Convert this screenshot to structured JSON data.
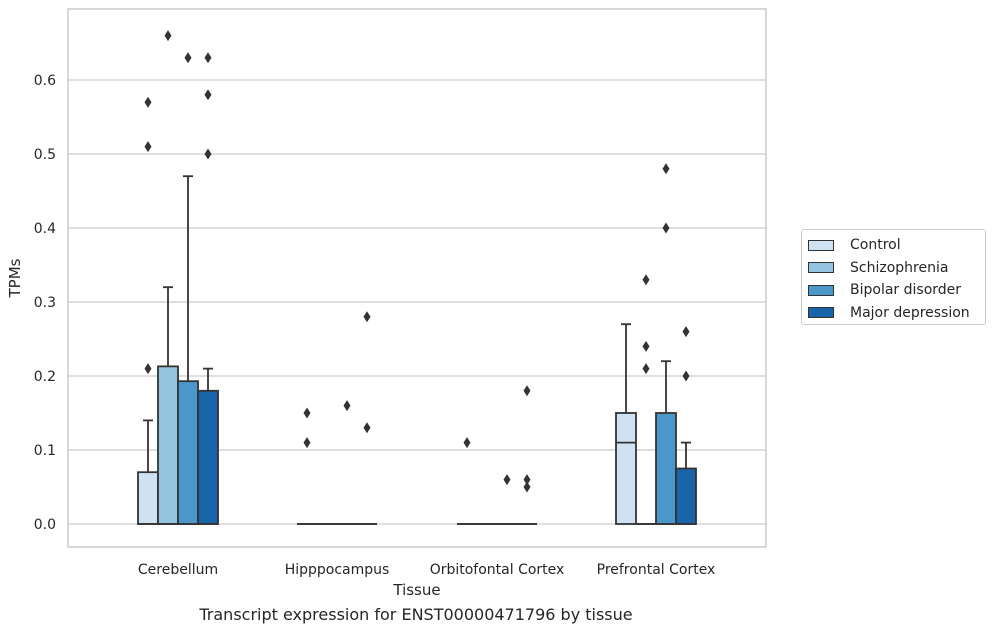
{
  "chart_data": {
    "type": "box",
    "caption": "Transcript expression for ENST00000471796 by tissue",
    "xlabel": "Tissue",
    "ylabel": "TPMs",
    "ylim": [
      -0.033,
      0.695
    ],
    "yticks": [
      "0.0",
      "0.1",
      "0.2",
      "0.3",
      "0.4",
      "0.5",
      "0.6"
    ],
    "grid": "horizontal",
    "legend_position": "right",
    "categories": [
      "Cerebellum",
      "Hipppocampus",
      "Orbitofontal Cortex",
      "Prefrontal Cortex"
    ],
    "series": [
      {
        "name": "Control",
        "color": "#d0e1f2",
        "boxes": [
          {
            "q1": 0.0,
            "median": 0.0,
            "q3": 0.07,
            "whisker_low": 0.0,
            "whisker_high": 0.14,
            "outliers": [
              0.21,
              0.51,
              0.57
            ]
          },
          {
            "q1": 0.0,
            "median": 0.0,
            "q3": 0.0,
            "whisker_low": 0.0,
            "whisker_high": 0.0,
            "outliers": [
              0.11,
              0.15
            ]
          },
          {
            "q1": 0.0,
            "median": 0.0,
            "q3": 0.0,
            "whisker_low": 0.0,
            "whisker_high": 0.0,
            "outliers": [
              0.11
            ]
          },
          {
            "q1": 0.0,
            "median": 0.11,
            "q3": 0.15,
            "whisker_low": 0.0,
            "whisker_high": 0.27,
            "outliers": []
          }
        ]
      },
      {
        "name": "Schizophrenia",
        "color": "#94c4df",
        "boxes": [
          {
            "q1": 0.0,
            "median": 0.0,
            "q3": 0.213,
            "whisker_low": 0.0,
            "whisker_high": 0.32,
            "outliers": [
              0.66
            ]
          },
          {
            "q1": 0.0,
            "median": 0.0,
            "q3": 0.0,
            "whisker_low": 0.0,
            "whisker_high": 0.0,
            "outliers": []
          },
          {
            "q1": 0.0,
            "median": 0.0,
            "q3": 0.0,
            "whisker_low": 0.0,
            "whisker_high": 0.0,
            "outliers": []
          },
          {
            "q1": 0.0,
            "median": 0.0,
            "q3": 0.0,
            "whisker_low": 0.0,
            "whisker_high": 0.0,
            "outliers": [
              0.21,
              0.24,
              0.33
            ]
          }
        ]
      },
      {
        "name": "Bipolar disorder",
        "color": "#4a98c9",
        "boxes": [
          {
            "q1": 0.0,
            "median": 0.0,
            "q3": 0.193,
            "whisker_low": 0.0,
            "whisker_high": 0.47,
            "outliers": [
              0.63
            ]
          },
          {
            "q1": 0.0,
            "median": 0.0,
            "q3": 0.0,
            "whisker_low": 0.0,
            "whisker_high": 0.0,
            "outliers": [
              0.16
            ]
          },
          {
            "q1": 0.0,
            "median": 0.0,
            "q3": 0.0,
            "whisker_low": 0.0,
            "whisker_high": 0.0,
            "outliers": [
              0.06
            ]
          },
          {
            "q1": 0.0,
            "median": 0.0,
            "q3": 0.15,
            "whisker_low": 0.0,
            "whisker_high": 0.22,
            "outliers": [
              0.4,
              0.48
            ]
          }
        ]
      },
      {
        "name": "Major depression",
        "color": "#1764ab",
        "boxes": [
          {
            "q1": 0.0,
            "median": 0.0,
            "q3": 0.18,
            "whisker_low": 0.0,
            "whisker_high": 0.21,
            "outliers": [
              0.5,
              0.58,
              0.63
            ]
          },
          {
            "q1": 0.0,
            "median": 0.0,
            "q3": 0.0,
            "whisker_low": 0.0,
            "whisker_high": 0.0,
            "outliers": [
              0.13,
              0.28
            ]
          },
          {
            "q1": 0.0,
            "median": 0.0,
            "q3": 0.0,
            "whisker_low": 0.0,
            "whisker_high": 0.0,
            "outliers": [
              0.05,
              0.06,
              0.18
            ]
          },
          {
            "q1": 0.0,
            "median": 0.0,
            "q3": 0.075,
            "whisker_low": 0.0,
            "whisker_high": 0.11,
            "outliers": [
              0.2,
              0.26
            ]
          }
        ]
      }
    ]
  }
}
